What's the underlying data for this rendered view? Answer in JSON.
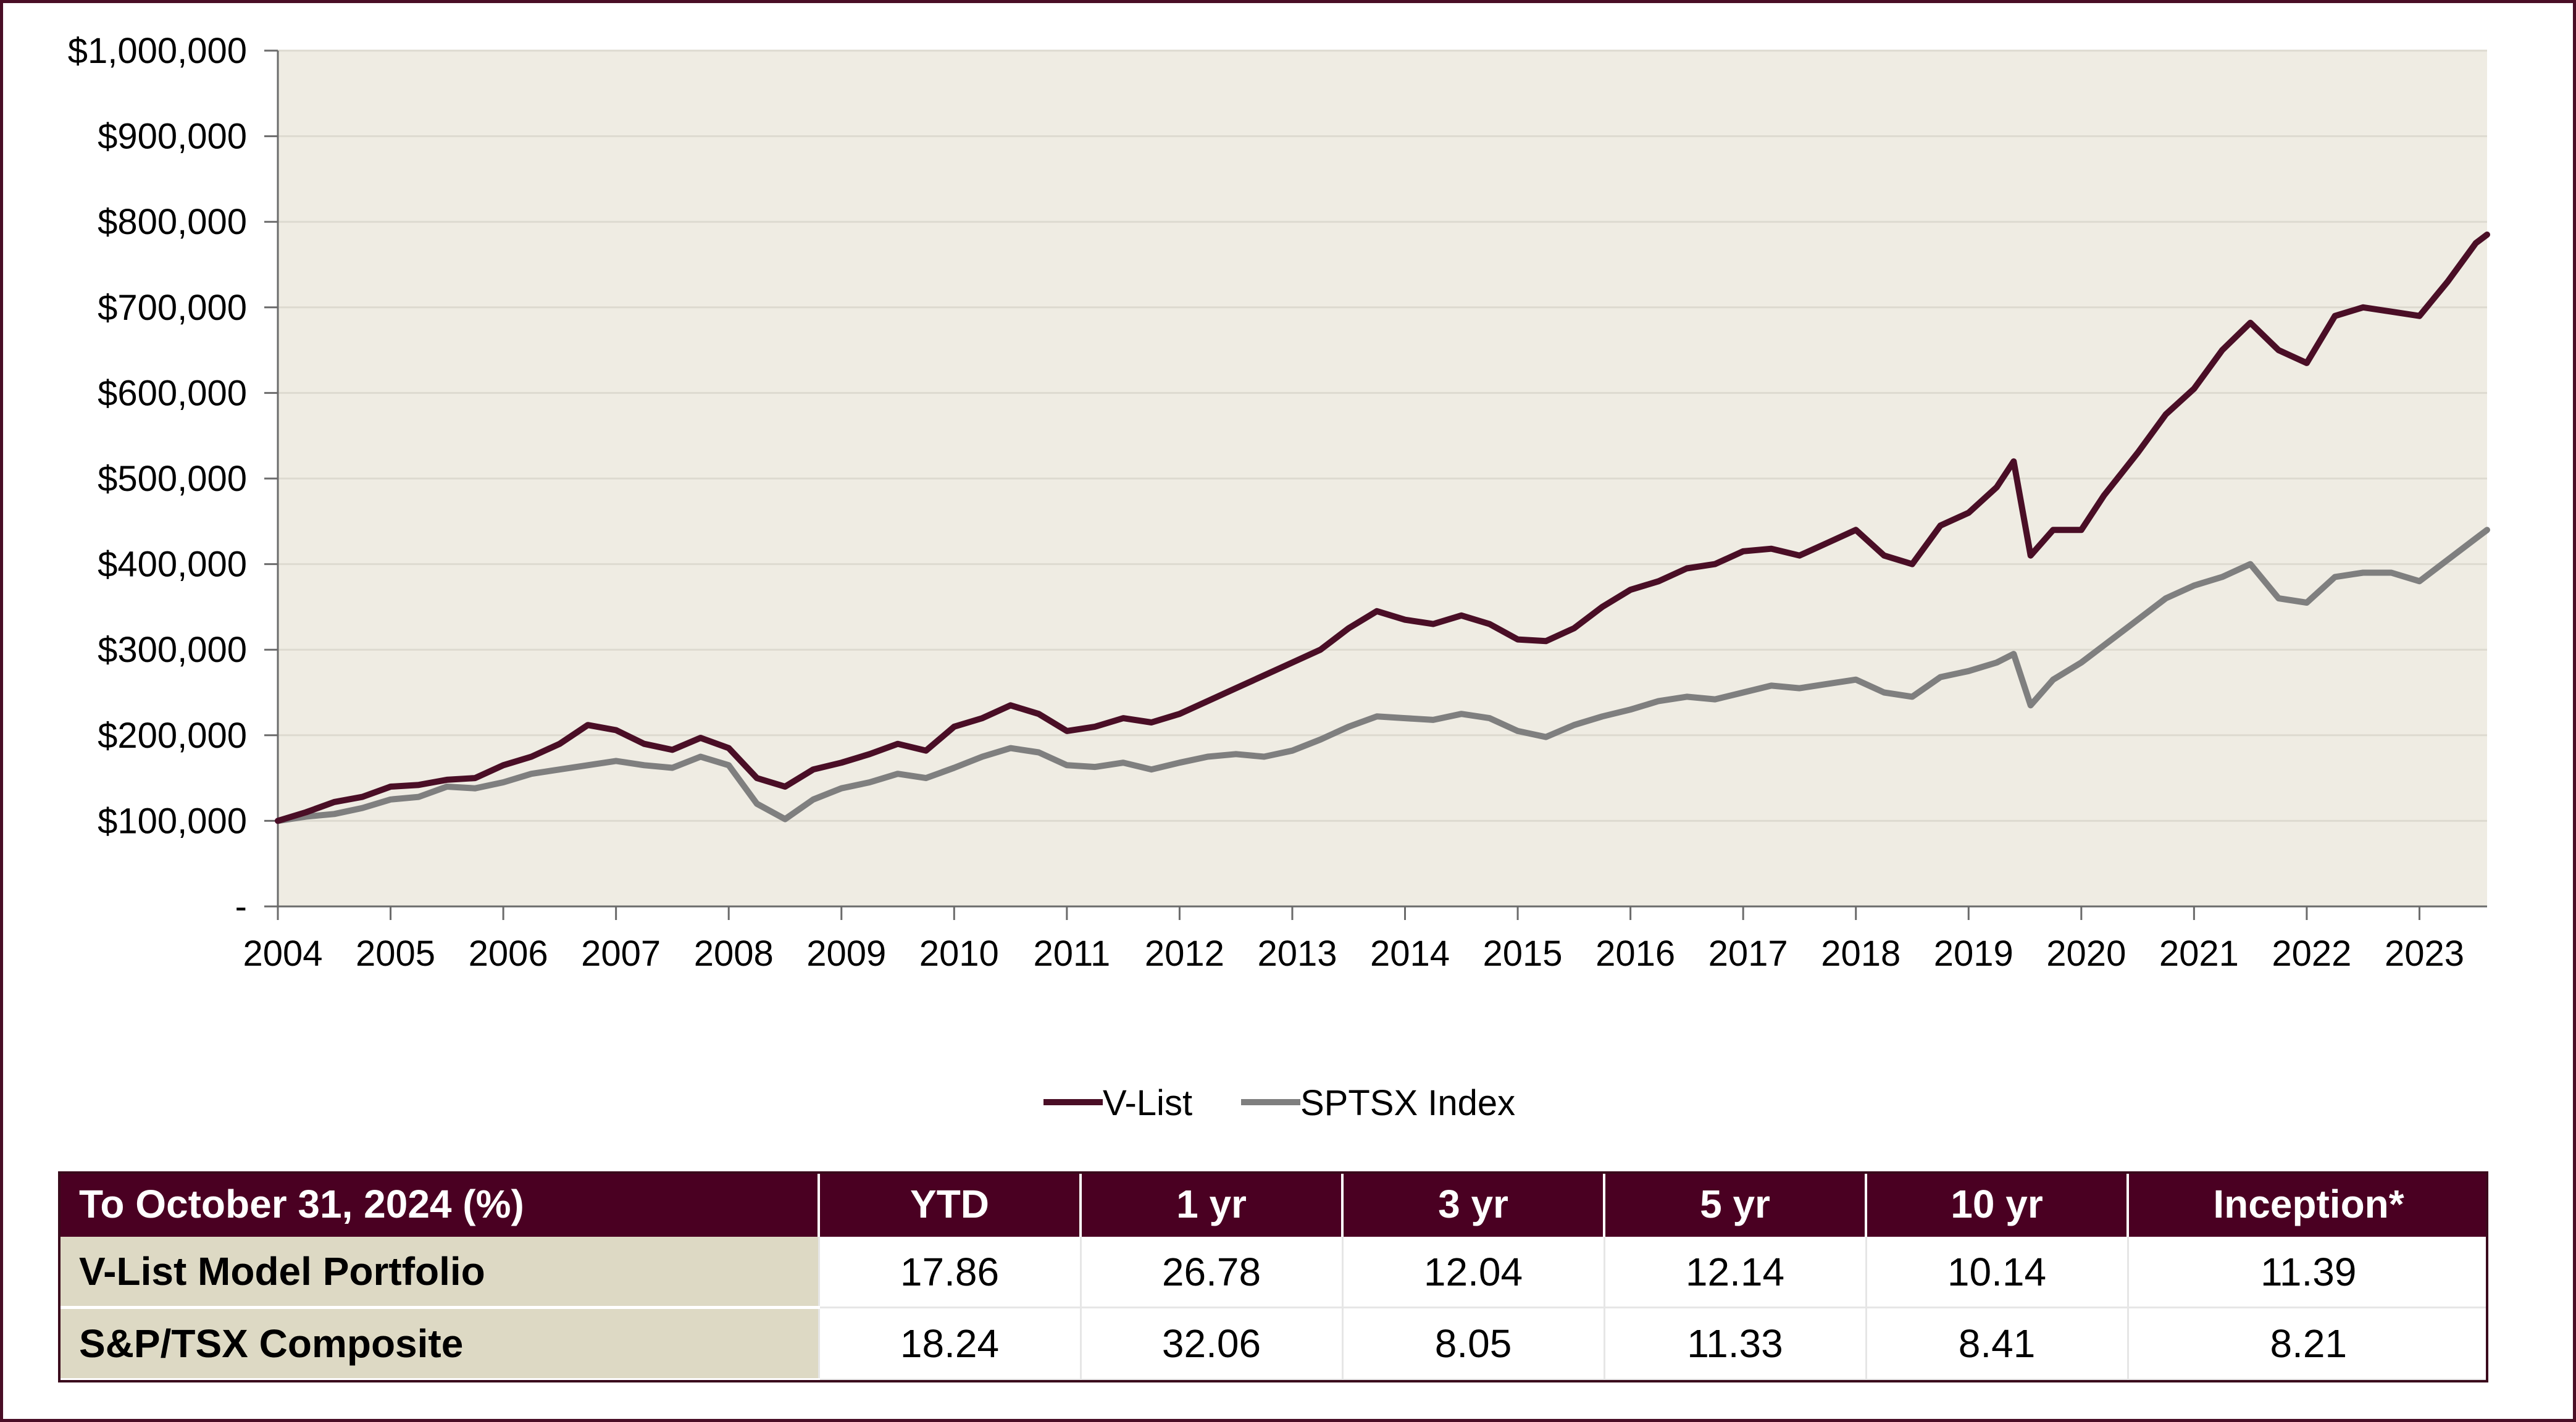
{
  "chart_data": {
    "type": "line",
    "title": "",
    "xlabel": "",
    "ylabel": "",
    "x_ticks": [
      "2004",
      "2005",
      "2006",
      "2007",
      "2008",
      "2009",
      "2010",
      "2011",
      "2012",
      "2013",
      "2014",
      "2015",
      "2016",
      "2017",
      "2018",
      "2019",
      "2020",
      "2021",
      "2022",
      "2023"
    ],
    "y_ticks": [
      {
        "value": 0,
        "label": "-"
      },
      {
        "value": 100000,
        "label": "$100,000"
      },
      {
        "value": 200000,
        "label": "$200,000"
      },
      {
        "value": 300000,
        "label": "$300,000"
      },
      {
        "value": 400000,
        "label": "$400,000"
      },
      {
        "value": 500000,
        "label": "$500,000"
      },
      {
        "value": 600000,
        "label": "$600,000"
      },
      {
        "value": 700000,
        "label": "$700,000"
      },
      {
        "value": 800000,
        "label": "$800,000"
      },
      {
        "value": 900000,
        "label": "$900,000"
      },
      {
        "value": 1000000,
        "label": "$1,000,000"
      }
    ],
    "ylim": [
      0,
      1000000
    ],
    "xlim": [
      2004.0,
      2023.6
    ],
    "grid": true,
    "legend_position": "bottom-center",
    "series": [
      {
        "name": "V-List",
        "color": "#4a0e26",
        "points": [
          [
            2004.0,
            100000
          ],
          [
            2004.25,
            110000
          ],
          [
            2004.5,
            122000
          ],
          [
            2004.75,
            128000
          ],
          [
            2005.0,
            140000
          ],
          [
            2005.25,
            142000
          ],
          [
            2005.5,
            148000
          ],
          [
            2005.75,
            150000
          ],
          [
            2006.0,
            165000
          ],
          [
            2006.25,
            175000
          ],
          [
            2006.5,
            190000
          ],
          [
            2006.75,
            212000
          ],
          [
            2007.0,
            206000
          ],
          [
            2007.25,
            190000
          ],
          [
            2007.5,
            183000
          ],
          [
            2007.75,
            197000
          ],
          [
            2008.0,
            185000
          ],
          [
            2008.25,
            150000
          ],
          [
            2008.5,
            140000
          ],
          [
            2008.75,
            160000
          ],
          [
            2009.0,
            168000
          ],
          [
            2009.25,
            178000
          ],
          [
            2009.5,
            190000
          ],
          [
            2009.75,
            182000
          ],
          [
            2010.0,
            210000
          ],
          [
            2010.25,
            220000
          ],
          [
            2010.5,
            235000
          ],
          [
            2010.75,
            225000
          ],
          [
            2011.0,
            205000
          ],
          [
            2011.25,
            210000
          ],
          [
            2011.5,
            220000
          ],
          [
            2011.75,
            215000
          ],
          [
            2012.0,
            225000
          ],
          [
            2012.25,
            240000
          ],
          [
            2012.5,
            255000
          ],
          [
            2012.75,
            270000
          ],
          [
            2013.0,
            285000
          ],
          [
            2013.25,
            300000
          ],
          [
            2013.5,
            325000
          ],
          [
            2013.75,
            345000
          ],
          [
            2014.0,
            335000
          ],
          [
            2014.25,
            330000
          ],
          [
            2014.5,
            340000
          ],
          [
            2014.75,
            330000
          ],
          [
            2015.0,
            312000
          ],
          [
            2015.25,
            310000
          ],
          [
            2015.5,
            325000
          ],
          [
            2015.75,
            350000
          ],
          [
            2016.0,
            370000
          ],
          [
            2016.25,
            380000
          ],
          [
            2016.5,
            395000
          ],
          [
            2016.75,
            400000
          ],
          [
            2017.0,
            415000
          ],
          [
            2017.25,
            418000
          ],
          [
            2017.5,
            410000
          ],
          [
            2017.75,
            425000
          ],
          [
            2018.0,
            440000
          ],
          [
            2018.25,
            410000
          ],
          [
            2018.5,
            400000
          ],
          [
            2018.75,
            445000
          ],
          [
            2019.0,
            460000
          ],
          [
            2019.25,
            490000
          ],
          [
            2019.4,
            520000
          ],
          [
            2019.55,
            410000
          ],
          [
            2019.75,
            440000
          ],
          [
            2020.0,
            440000
          ],
          [
            2020.2,
            480000
          ],
          [
            2020.5,
            530000
          ],
          [
            2020.75,
            575000
          ],
          [
            2021.0,
            605000
          ],
          [
            2021.25,
            650000
          ],
          [
            2021.5,
            682000
          ],
          [
            2021.75,
            650000
          ],
          [
            2022.0,
            635000
          ],
          [
            2022.25,
            690000
          ],
          [
            2022.5,
            700000
          ],
          [
            2022.75,
            695000
          ],
          [
            2023.0,
            690000
          ],
          [
            2023.25,
            730000
          ],
          [
            2023.5,
            775000
          ],
          [
            2023.6,
            785000
          ]
        ]
      },
      {
        "name": "SPTSX Index",
        "color": "#7f7f7f",
        "points": [
          [
            2004.0,
            100000
          ],
          [
            2004.25,
            105000
          ],
          [
            2004.5,
            108000
          ],
          [
            2004.75,
            115000
          ],
          [
            2005.0,
            125000
          ],
          [
            2005.25,
            128000
          ],
          [
            2005.5,
            140000
          ],
          [
            2005.75,
            138000
          ],
          [
            2006.0,
            145000
          ],
          [
            2006.25,
            155000
          ],
          [
            2006.5,
            160000
          ],
          [
            2006.75,
            165000
          ],
          [
            2007.0,
            170000
          ],
          [
            2007.25,
            165000
          ],
          [
            2007.5,
            162000
          ],
          [
            2007.75,
            175000
          ],
          [
            2008.0,
            165000
          ],
          [
            2008.25,
            120000
          ],
          [
            2008.5,
            102000
          ],
          [
            2008.75,
            125000
          ],
          [
            2009.0,
            138000
          ],
          [
            2009.25,
            145000
          ],
          [
            2009.5,
            155000
          ],
          [
            2009.75,
            150000
          ],
          [
            2010.0,
            162000
          ],
          [
            2010.25,
            175000
          ],
          [
            2010.5,
            185000
          ],
          [
            2010.75,
            180000
          ],
          [
            2011.0,
            165000
          ],
          [
            2011.25,
            163000
          ],
          [
            2011.5,
            168000
          ],
          [
            2011.75,
            160000
          ],
          [
            2012.0,
            168000
          ],
          [
            2012.25,
            175000
          ],
          [
            2012.5,
            178000
          ],
          [
            2012.75,
            175000
          ],
          [
            2013.0,
            182000
          ],
          [
            2013.25,
            195000
          ],
          [
            2013.5,
            210000
          ],
          [
            2013.75,
            222000
          ],
          [
            2014.0,
            220000
          ],
          [
            2014.25,
            218000
          ],
          [
            2014.5,
            225000
          ],
          [
            2014.75,
            220000
          ],
          [
            2015.0,
            205000
          ],
          [
            2015.25,
            198000
          ],
          [
            2015.5,
            212000
          ],
          [
            2015.75,
            222000
          ],
          [
            2016.0,
            230000
          ],
          [
            2016.25,
            240000
          ],
          [
            2016.5,
            245000
          ],
          [
            2016.75,
            242000
          ],
          [
            2017.0,
            250000
          ],
          [
            2017.25,
            258000
          ],
          [
            2017.5,
            255000
          ],
          [
            2017.75,
            260000
          ],
          [
            2018.0,
            265000
          ],
          [
            2018.25,
            250000
          ],
          [
            2018.5,
            245000
          ],
          [
            2018.75,
            268000
          ],
          [
            2019.0,
            275000
          ],
          [
            2019.25,
            285000
          ],
          [
            2019.4,
            295000
          ],
          [
            2019.55,
            235000
          ],
          [
            2019.75,
            265000
          ],
          [
            2020.0,
            285000
          ],
          [
            2020.2,
            305000
          ],
          [
            2020.5,
            335000
          ],
          [
            2020.75,
            360000
          ],
          [
            2021.0,
            375000
          ],
          [
            2021.25,
            385000
          ],
          [
            2021.5,
            400000
          ],
          [
            2021.75,
            360000
          ],
          [
            2022.0,
            355000
          ],
          [
            2022.25,
            385000
          ],
          [
            2022.5,
            390000
          ],
          [
            2022.75,
            390000
          ],
          [
            2023.0,
            380000
          ],
          [
            2023.25,
            405000
          ],
          [
            2023.5,
            430000
          ],
          [
            2023.6,
            440000
          ]
        ]
      }
    ]
  },
  "table": {
    "header_title": "To October 31, 2024 (%)",
    "columns": [
      "YTD",
      "1 yr",
      "3 yr",
      "5 yr",
      "10 yr",
      "Inception*"
    ],
    "rows": [
      {
        "label": "V-List Model Portfolio",
        "values": [
          "17.86",
          "26.78",
          "12.04",
          "12.14",
          "10.14",
          "11.39"
        ]
      },
      {
        "label": "S&P/TSX Composite",
        "values": [
          "18.24",
          "32.06",
          "8.05",
          "11.33",
          "8.41",
          "8.21"
        ]
      }
    ]
  },
  "colors": {
    "frame": "#4a0e26",
    "plot_background": "#efece3",
    "header_background": "#4a0022",
    "row_label_background": "#ddd9c4",
    "gridline": "#dddad0",
    "axis": "#6b6b6b"
  }
}
